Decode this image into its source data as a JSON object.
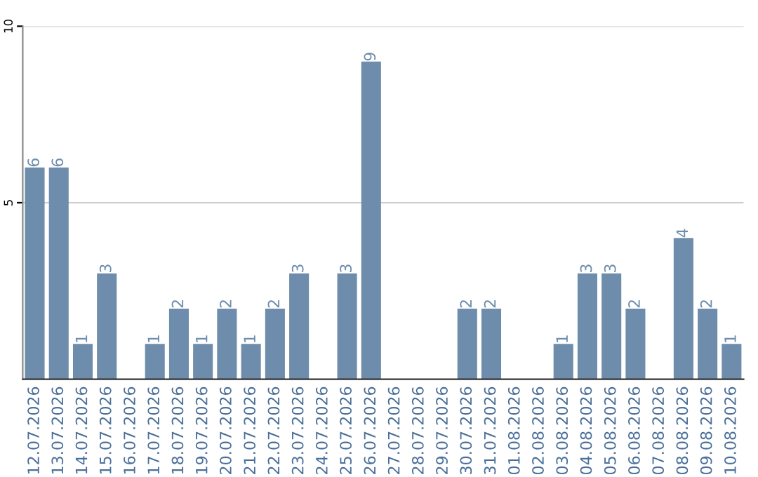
{
  "chart_data": {
    "type": "bar",
    "categories": [
      "12.07.2026",
      "13.07.2026",
      "14.07.2026",
      "15.07.2026",
      "16.07.2026",
      "17.07.2026",
      "18.07.2026",
      "19.07.2026",
      "20.07.2026",
      "21.07.2026",
      "22.07.2026",
      "23.07.2026",
      "24.07.2026",
      "25.07.2026",
      "26.07.2026",
      "27.07.2026",
      "28.07.2026",
      "29.07.2026",
      "30.07.2026",
      "31.07.2026",
      "01.08.2026",
      "02.08.2026",
      "03.08.2026",
      "04.08.2026",
      "05.08.2026",
      "06.08.2026",
      "07.08.2026",
      "08.08.2026",
      "09.08.2026",
      "10.08.2026"
    ],
    "values": [
      6,
      6,
      1,
      3,
      null,
      1,
      2,
      1,
      2,
      1,
      2,
      3,
      null,
      3,
      9,
      null,
      null,
      null,
      2,
      2,
      null,
      null,
      1,
      3,
      3,
      2,
      null,
      4,
      2,
      1
    ],
    "color": "#6e8cab",
    "ylim": [
      0,
      10
    ],
    "yticks": [
      5,
      10
    ],
    "grid": "y",
    "data_labels": true
  }
}
